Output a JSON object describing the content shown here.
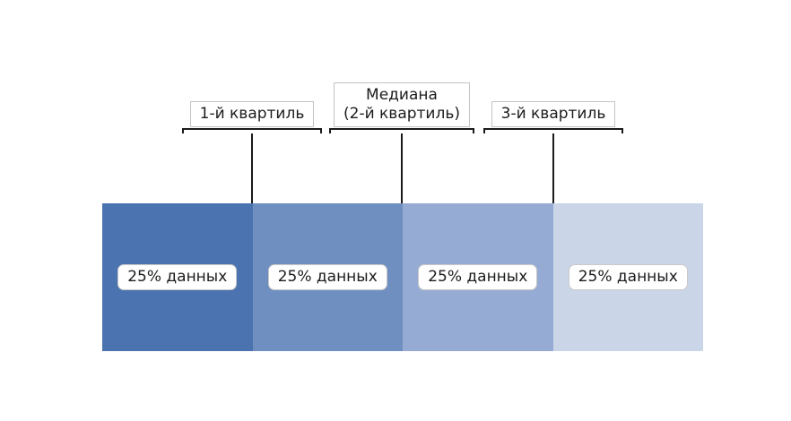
{
  "figure": {
    "background": "#ffffff",
    "text_color": "#1c1c1c",
    "line_color": "#1a1a1a"
  },
  "annotations": [
    {
      "id": "q1",
      "line1": "1-й квартиль",
      "line2": ""
    },
    {
      "id": "median",
      "line1": "Медиана",
      "line2": "(2-й квартиль)"
    },
    {
      "id": "q3",
      "line1": "3-й квартиль",
      "line2": ""
    }
  ],
  "blocks": [
    {
      "label": "25% данных",
      "color": "#4a73af"
    },
    {
      "label": "25% данных",
      "color": "#6f8fc1"
    },
    {
      "label": "25% данных",
      "color": "#96abd3"
    },
    {
      "label": "25% данных",
      "color": "#cad5e8"
    }
  ]
}
